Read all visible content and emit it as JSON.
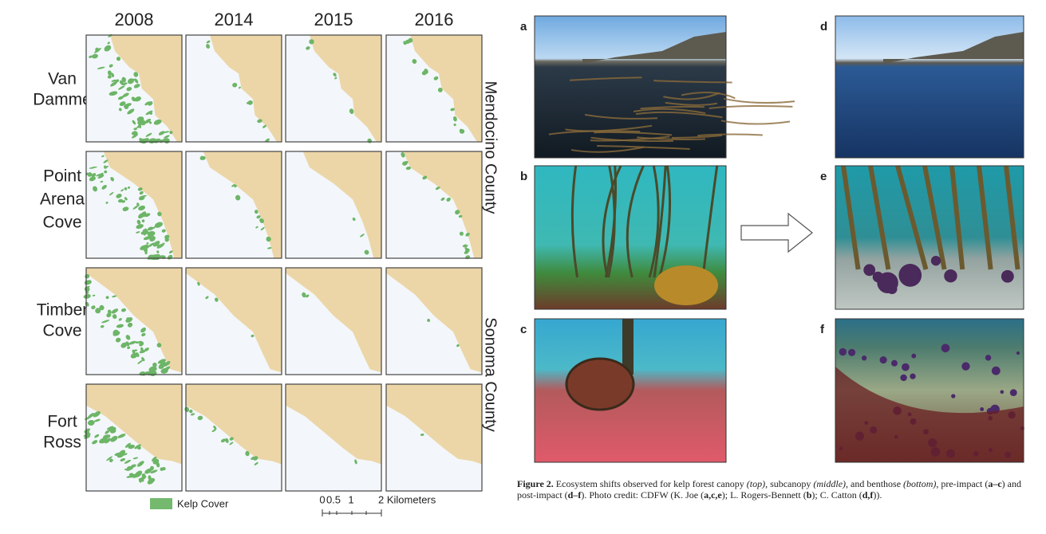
{
  "figure_maps": {
    "years": [
      "2008",
      "2014",
      "2015",
      "2016"
    ],
    "sites": [
      {
        "lines": [
          "Van",
          "Damme"
        ]
      },
      {
        "lines": [
          "Point",
          "Arena",
          "Cove"
        ]
      },
      {
        "lines": [
          "Timber",
          "Cove"
        ]
      },
      {
        "lines": [
          "Fort",
          "Ross"
        ]
      }
    ],
    "counties": [
      "Mendocino County",
      "Sonoma County"
    ],
    "legend": "Kelp Cover",
    "scale_labels": [
      "0",
      "0.5",
      "1",
      "2 Kilometers"
    ]
  },
  "photo_panels": {
    "letters": [
      "a",
      "b",
      "c",
      "d",
      "e",
      "f"
    ]
  },
  "caption": {
    "runs": [
      "Figure 2.",
      " Ecosystem shifts observed for kelp forest canopy ",
      "(top)",
      ", subcanopy ",
      "(middle)",
      ", and benthose ",
      "(bottom)",
      ", pre-impact (",
      "a–c",
      ") and post-impact (",
      "d–f",
      "). Photo credit: CDFW (K. Joe (",
      "a,c,e",
      "); L. Rogers-Bennett (",
      "b",
      "); C. Catton (",
      "d,f",
      "))."
    ]
  }
}
